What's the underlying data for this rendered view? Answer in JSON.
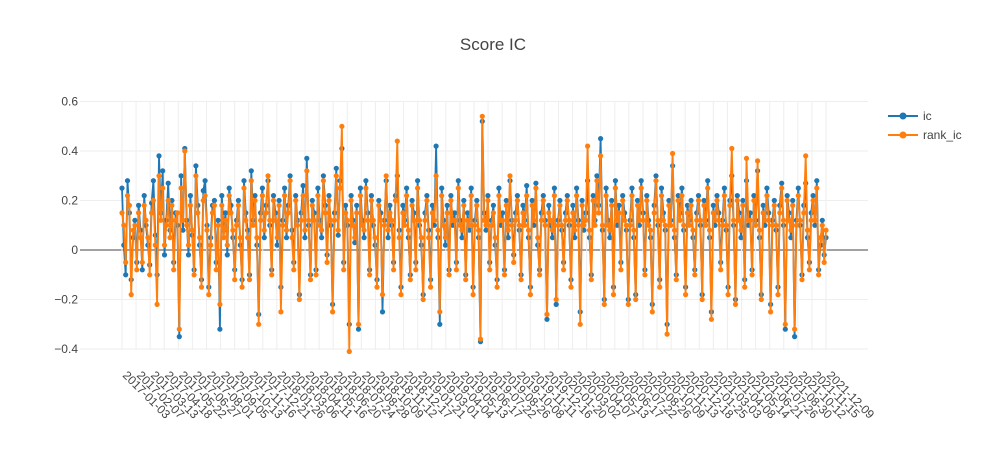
{
  "chart_data": {
    "type": "line",
    "title": "Score IC",
    "xlabel": "",
    "ylabel": "",
    "ylim": [
      -0.46,
      0.62
    ],
    "yticks": [
      -0.4,
      -0.2,
      0,
      0.2,
      0.4,
      0.6
    ],
    "ytick_labels": [
      "−0.4",
      "−0.2",
      "0",
      "0.2",
      "0.4",
      "0.6"
    ],
    "xlim": [
      "2017-01-03",
      "2021-12-31"
    ],
    "x_start": "2017-01-03",
    "x_end": "2021-12-31",
    "xtick_labels": [
      "2017-01-03",
      "2017-02-07",
      "2017-03-13",
      "2017-04-18",
      "2017-05-22",
      "2017-06-27",
      "2017-08-01",
      "2017-09-05",
      "2017-10-13",
      "2017-11-16",
      "2017-12-21",
      "2018-01-26",
      "2018-03-06",
      "2018-04-11",
      "2018-05-16",
      "2018-06-20",
      "2018-07-24",
      "2018-08-28",
      "2018-10-09",
      "2018-11-12",
      "2018-12-17",
      "2019-01-21",
      "2019-03-01",
      "2019-04-04",
      "2019-05-13",
      "2019-06-17",
      "2019-07-22",
      "2019-08-26",
      "2019-10-08",
      "2019-11-11",
      "2019-12-16",
      "2020-01-20",
      "2020-03-02",
      "2020-04-07",
      "2020-05-13",
      "2020-06-17",
      "2020-07-22",
      "2020-08-26",
      "2020-10-09",
      "2020-11-13",
      "2020-12-18",
      "2021-01-25",
      "2021-03-03",
      "2021-04-08",
      "2021-05-14",
      "2021-06-21",
      "2021-07-26",
      "2021-08-30",
      "2021-10-12",
      "2021-11-15",
      "2021-12-09"
    ],
    "grid": true,
    "legend_position": "top-right",
    "series": [
      {
        "name": "ic",
        "color": "#1f77b4",
        "markers": true,
        "values": [
          0.25,
          0.02,
          -0.1,
          0.28,
          0.15,
          -0.12,
          0.05,
          0.12,
          -0.05,
          0.18,
          0.08,
          -0.08,
          0.22,
          0.1,
          0.02,
          -0.06,
          0.19,
          0.28,
          0.06,
          -0.1,
          0.38,
          0.15,
          0.32,
          -0.02,
          0.12,
          0.27,
          0.08,
          0.2,
          -0.05,
          0.15,
          0.1,
          -0.35,
          0.3,
          0.08,
          0.41,
          0.12,
          -0.02,
          0.22,
          0.06,
          -0.08,
          0.34,
          0.18,
          0.02,
          -0.12,
          0.24,
          0.28,
          0.1,
          -0.15,
          0.05,
          0.18,
          0.2,
          -0.05,
          0.12,
          -0.32,
          0.22,
          0.08,
          0.15,
          -0.02,
          0.25,
          0.18,
          0.05,
          -0.08,
          0.12,
          0.2,
          0.02,
          -0.12,
          0.28,
          0.15,
          0.08,
          -0.1,
          0.32,
          0.12,
          0.22,
          0.02,
          -0.26,
          0.15,
          0.25,
          0.05,
          0.18,
          0.28,
          0.1,
          -0.08,
          0.22,
          0.15,
          0.02,
          0.2,
          -0.15,
          0.12,
          0.25,
          0.05,
          0.18,
          0.3,
          0.08,
          -0.05,
          0.22,
          0.12,
          -0.18,
          0.15,
          0.26,
          0.05,
          0.37,
          0.1,
          -0.1,
          0.2,
          0.15,
          -0.08,
          0.25,
          0.12,
          0.05,
          0.3,
          0.18,
          -0.02,
          0.22,
          0.1,
          -0.22,
          0.15,
          0.33,
          0.06,
          0.28,
          0.41,
          -0.05,
          0.18,
          0.1,
          -0.3,
          0.22,
          0.12,
          0.03,
          0.18,
          -0.32,
          0.25,
          0.12,
          0.05,
          0.28,
          0.15,
          -0.08,
          0.22,
          0.1,
          0.02,
          -0.12,
          0.2,
          0.15,
          -0.25,
          0.12,
          0.28,
          0.05,
          0.18,
          0.1,
          -0.05,
          0.22,
          0.3,
          0.08,
          -0.15,
          0.18,
          0.12,
          0.25,
          0.05,
          -0.1,
          0.2,
          0.15,
          -0.05,
          0.28,
          0.1,
          0.02,
          -0.18,
          0.15,
          0.22,
          0.08,
          -0.12,
          0.18,
          0.1,
          0.42,
          0.05,
          -0.3,
          0.25,
          0.12,
          0.02,
          0.18,
          -0.08,
          0.22,
          0.1,
          0.15,
          -0.05,
          0.28,
          0.12,
          0.05,
          0.2,
          -0.1,
          0.15,
          0.08,
          0.25,
          -0.15,
          0.12,
          0.2,
          0.05,
          -0.37,
          0.52,
          0.15,
          0.08,
          0.22,
          -0.05,
          0.12,
          0.18,
          0.02,
          -0.12,
          0.25,
          0.1,
          0.15,
          -0.08,
          0.2,
          0.05,
          0.28,
          0.12,
          -0.02,
          0.15,
          0.22,
          0.08,
          -0.1,
          0.18,
          0.12,
          0.26,
          0.05,
          -0.15,
          0.2,
          0.1,
          0.27,
          0.02,
          -0.08,
          0.15,
          0.22,
          0.12,
          -0.28,
          0.18,
          0.1,
          0.05,
          0.25,
          -0.22,
          0.12,
          0.2,
          0.08,
          -0.05,
          0.15,
          0.22,
          0.1,
          -0.12,
          0.18,
          0.05,
          0.25,
          0.12,
          -0.25,
          0.2,
          0.08,
          0.15,
          0.28,
          0.05,
          -0.1,
          0.22,
          0.12,
          0.3,
          0.18,
          0.45,
          0.08,
          -0.2,
          0.25,
          0.12,
          0.05,
          0.2,
          -0.15,
          0.28,
          0.1,
          0.18,
          -0.05,
          0.22,
          0.15,
          0.08,
          -0.2,
          0.12,
          0.25,
          0.05,
          -0.18,
          0.2,
          0.1,
          0.28,
          0.15,
          -0.08,
          0.22,
          0.12,
          0.05,
          -0.22,
          0.18,
          0.3,
          0.1,
          -0.12,
          0.25,
          0.15,
          0.08,
          -0.3,
          0.2,
          0.12,
          0.34,
          0.05,
          -0.1,
          0.22,
          0.15,
          0.25,
          0.08,
          -0.15,
          0.18,
          0.12,
          0.2,
          0.05,
          -0.08,
          0.15,
          0.22,
          0.1,
          -0.18,
          0.2,
          0.12,
          0.28,
          0.05,
          -0.25,
          0.18,
          0.1,
          0.22,
          0.15,
          -0.05,
          0.12,
          0.25,
          0.08,
          -0.15,
          0.2,
          0.3,
          0.1,
          -0.2,
          0.22,
          0.15,
          0.05,
          0.2,
          -0.12,
          0.28,
          0.1,
          0.15,
          -0.08,
          0.22,
          0.12,
          0.32,
          0.05,
          -0.18,
          0.18,
          0.1,
          0.25,
          0.15,
          -0.22,
          0.12,
          0.2,
          0.08,
          -0.15,
          0.18,
          0.27,
          0.1,
          -0.32,
          0.22,
          0.15,
          0.05,
          0.2,
          -0.35,
          0.12,
          0.25,
          0.1,
          -0.1,
          0.18,
          0.27,
          0.05,
          -0.05,
          0.15,
          0.22,
          0.1,
          0.28,
          -0.08,
          0.02,
          0.12,
          -0.02,
          0.05
        ]
      },
      {
        "name": "rank_ic",
        "color": "#ff7f0e",
        "markers": true,
        "values": [
          0.15,
          0.1,
          -0.05,
          0.22,
          0.18,
          -0.18,
          0.08,
          0.1,
          -0.08,
          0.15,
          0.05,
          -0.05,
          0.18,
          0.12,
          0.05,
          -0.1,
          0.15,
          0.2,
          0.02,
          -0.22,
          0.3,
          0.12,
          0.25,
          0.02,
          0.1,
          0.2,
          0.05,
          0.18,
          -0.08,
          0.12,
          0.15,
          -0.32,
          0.25,
          0.12,
          0.4,
          0.1,
          0.02,
          0.18,
          0.08,
          -0.1,
          0.3,
          0.15,
          0.05,
          -0.15,
          0.2,
          0.22,
          0.08,
          -0.18,
          0.02,
          0.15,
          0.18,
          -0.08,
          0.1,
          -0.22,
          0.18,
          0.05,
          0.12,
          0.02,
          0.22,
          0.15,
          0.08,
          -0.12,
          0.1,
          0.18,
          0.05,
          -0.15,
          0.25,
          0.12,
          0.05,
          -0.12,
          0.28,
          0.1,
          0.2,
          0.05,
          -0.3,
          0.12,
          0.22,
          0.08,
          0.15,
          0.3,
          0.12,
          -0.1,
          0.2,
          0.12,
          0.05,
          0.18,
          -0.25,
          0.1,
          0.22,
          0.08,
          0.15,
          0.28,
          0.05,
          -0.08,
          0.2,
          0.1,
          -0.2,
          0.12,
          0.22,
          0.08,
          0.32,
          0.12,
          -0.12,
          0.18,
          0.12,
          -0.1,
          0.22,
          0.1,
          0.08,
          0.28,
          0.15,
          -0.05,
          0.2,
          0.12,
          -0.25,
          0.12,
          0.3,
          0.08,
          0.25,
          0.5,
          -0.08,
          0.15,
          0.12,
          -0.41,
          0.2,
          0.1,
          0.05,
          0.15,
          -0.3,
          0.22,
          0.1,
          0.08,
          0.25,
          0.12,
          -0.1,
          0.2,
          0.12,
          0.05,
          -0.15,
          0.18,
          0.12,
          -0.18,
          0.1,
          0.3,
          0.08,
          0.15,
          0.12,
          -0.08,
          0.2,
          0.44,
          0.05,
          -0.18,
          0.15,
          0.1,
          0.22,
          0.08,
          -0.12,
          0.18,
          0.12,
          -0.08,
          0.25,
          0.12,
          0.05,
          -0.2,
          0.12,
          0.2,
          0.05,
          -0.15,
          0.15,
          0.12,
          0.3,
          0.08,
          -0.25,
          0.22,
          0.1,
          0.05,
          0.15,
          -0.1,
          0.2,
          0.12,
          0.12,
          -0.08,
          0.25,
          0.1,
          0.08,
          0.18,
          -0.12,
          0.12,
          0.1,
          0.22,
          -0.18,
          0.1,
          0.18,
          0.08,
          -0.36,
          0.54,
          0.12,
          0.1,
          0.2,
          -0.08,
          0.1,
          0.15,
          0.05,
          -0.15,
          0.22,
          0.12,
          0.12,
          -0.1,
          0.18,
          0.08,
          0.3,
          0.1,
          -0.05,
          0.12,
          0.2,
          0.1,
          -0.12,
          0.15,
          0.1,
          0.22,
          0.08,
          -0.18,
          0.18,
          0.12,
          0.25,
          0.05,
          -0.1,
          0.12,
          0.2,
          0.1,
          -0.26,
          0.15,
          0.12,
          0.08,
          0.22,
          -0.2,
          0.1,
          0.18,
          0.1,
          -0.08,
          0.12,
          0.2,
          0.12,
          -0.15,
          0.15,
          0.08,
          0.22,
          0.1,
          -0.3,
          0.18,
          0.1,
          0.12,
          0.42,
          0.08,
          -0.12,
          0.2,
          0.1,
          0.28,
          0.15,
          0.38,
          0.1,
          -0.22,
          0.22,
          0.1,
          0.08,
          0.18,
          -0.18,
          0.25,
          0.12,
          0.15,
          -0.08,
          0.2,
          0.12,
          0.1,
          -0.22,
          0.1,
          0.22,
          0.08,
          -0.2,
          0.18,
          0.12,
          0.25,
          0.12,
          -0.1,
          0.2,
          0.1,
          0.08,
          -0.25,
          0.15,
          0.28,
          0.12,
          -0.15,
          0.22,
          0.12,
          0.1,
          -0.34,
          0.18,
          0.1,
          0.39,
          0.08,
          -0.12,
          0.2,
          0.12,
          0.22,
          0.1,
          -0.18,
          0.15,
          0.1,
          0.18,
          0.08,
          -0.1,
          0.12,
          0.2,
          0.12,
          -0.2,
          0.18,
          0.1,
          0.25,
          0.08,
          -0.28,
          0.15,
          0.12,
          0.2,
          0.12,
          -0.08,
          0.1,
          0.22,
          0.1,
          -0.18,
          0.18,
          0.41,
          0.12,
          -0.22,
          0.2,
          0.12,
          0.08,
          0.18,
          -0.15,
          0.37,
          0.12,
          0.12,
          -0.1,
          0.2,
          0.1,
          0.36,
          0.08,
          -0.2,
          0.15,
          0.12,
          0.22,
          0.12,
          -0.25,
          0.1,
          0.18,
          0.1,
          -0.18,
          0.15,
          0.25,
          0.12,
          -0.3,
          0.2,
          0.12,
          0.08,
          0.18,
          -0.32,
          0.1,
          0.22,
          0.12,
          -0.12,
          0.15,
          0.38,
          0.08,
          -0.08,
          0.12,
          0.2,
          0.12,
          0.25,
          -0.1,
          0.05,
          0.1,
          -0.05,
          0.08
        ]
      }
    ]
  }
}
